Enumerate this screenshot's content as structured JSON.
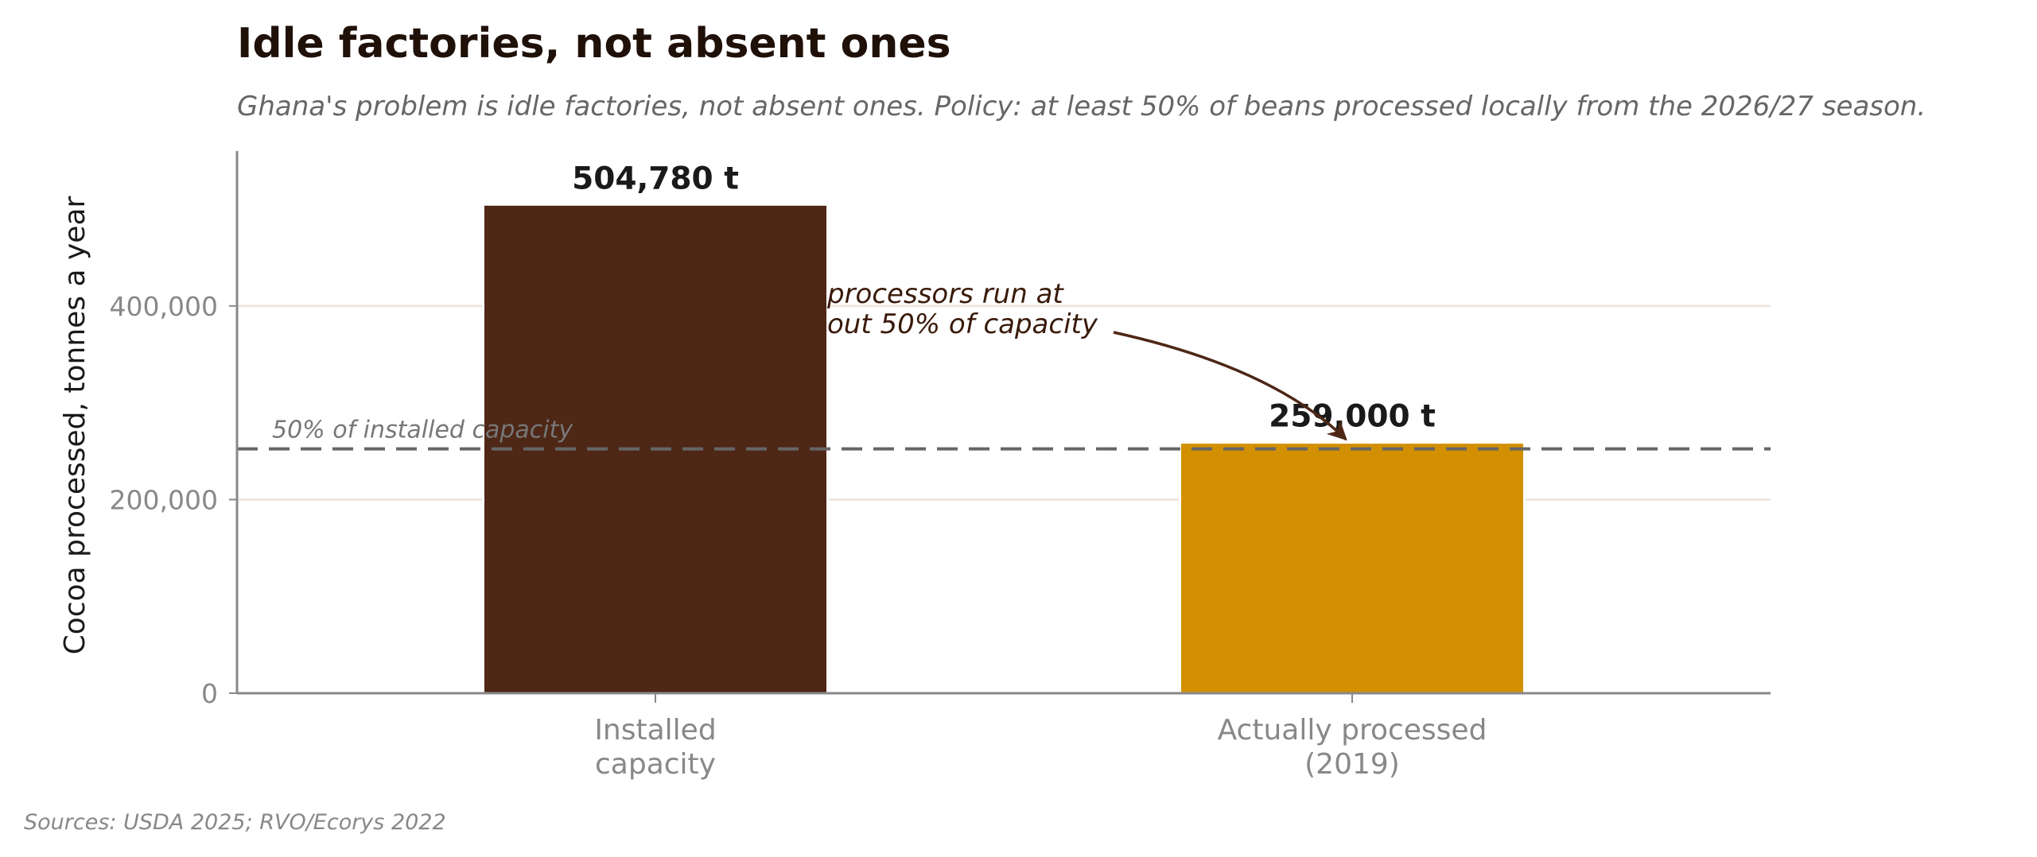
{
  "chart_data": {
    "type": "bar",
    "title": "Idle factories, not absent ones",
    "subtitle": "Ghana's problem is idle factories, not absent ones. Policy: at least 50% of beans processed locally from the 2026/27 season.",
    "ylabel": "Cocoa processed, tonnes a year",
    "xlabel": "",
    "ylim": [
      0,
      560000
    ],
    "yticks": [
      0,
      200000,
      400000
    ],
    "ytick_labels": [
      "0",
      "200,000",
      "400,000"
    ],
    "grid": true,
    "categories": [
      [
        "Installed",
        "capacity"
      ],
      [
        "Actually processed",
        "(2019)"
      ]
    ],
    "values": [
      504780,
      259000
    ],
    "value_labels": [
      "504,780 t",
      "259,000 t"
    ],
    "colors": [
      "#4e2716",
      "#d29000"
    ],
    "reference_line": {
      "value": 252390,
      "label": "50% of installed capacity",
      "color": "#666666"
    },
    "annotation": {
      "lines": [
        "processors run at",
        "out 50% of capacity"
      ],
      "target_category": 1
    },
    "source": "Sources: USDA 2025; RVO/Ecorys 2022"
  },
  "style": {
    "grid_color": "#efe6da",
    "axis_color": "#888888",
    "arrow_color": "#4e2716"
  }
}
